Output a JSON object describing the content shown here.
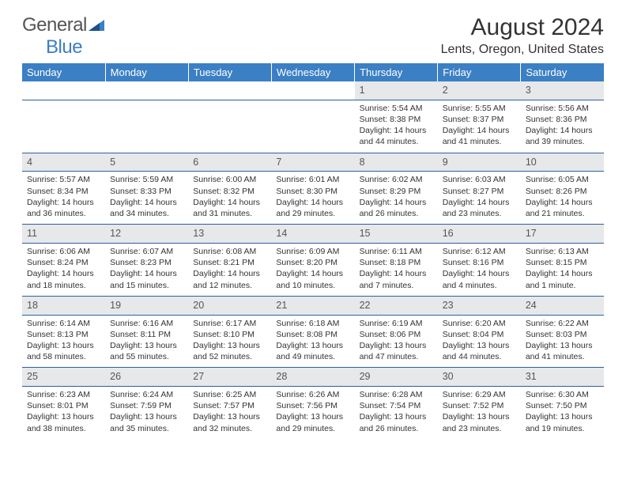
{
  "logo": {
    "word1": "General",
    "word2": "Blue"
  },
  "title": "August 2024",
  "location": "Lents, Oregon, United States",
  "day_headers": [
    "Sunday",
    "Monday",
    "Tuesday",
    "Wednesday",
    "Thursday",
    "Friday",
    "Saturday"
  ],
  "colors": {
    "header_bg": "#3b7fc4",
    "header_text": "#ffffff",
    "row_border": "#2f5f9e",
    "daynum_bg": "#e7e8ea",
    "body_bg": "#ffffff",
    "text": "#333333",
    "logo_blue": "#3b7fc4",
    "logo_gray": "#555555"
  },
  "weeks": [
    {
      "numbers": [
        "",
        "",
        "",
        "",
        "1",
        "2",
        "3"
      ],
      "cells": [
        {},
        {},
        {},
        {},
        {
          "sunrise": "Sunrise: 5:54 AM",
          "sunset": "Sunset: 8:38 PM",
          "daylight1": "Daylight: 14 hours",
          "daylight2": "and 44 minutes."
        },
        {
          "sunrise": "Sunrise: 5:55 AM",
          "sunset": "Sunset: 8:37 PM",
          "daylight1": "Daylight: 14 hours",
          "daylight2": "and 41 minutes."
        },
        {
          "sunrise": "Sunrise: 5:56 AM",
          "sunset": "Sunset: 8:36 PM",
          "daylight1": "Daylight: 14 hours",
          "daylight2": "and 39 minutes."
        }
      ]
    },
    {
      "numbers": [
        "4",
        "5",
        "6",
        "7",
        "8",
        "9",
        "10"
      ],
      "cells": [
        {
          "sunrise": "Sunrise: 5:57 AM",
          "sunset": "Sunset: 8:34 PM",
          "daylight1": "Daylight: 14 hours",
          "daylight2": "and 36 minutes."
        },
        {
          "sunrise": "Sunrise: 5:59 AM",
          "sunset": "Sunset: 8:33 PM",
          "daylight1": "Daylight: 14 hours",
          "daylight2": "and 34 minutes."
        },
        {
          "sunrise": "Sunrise: 6:00 AM",
          "sunset": "Sunset: 8:32 PM",
          "daylight1": "Daylight: 14 hours",
          "daylight2": "and 31 minutes."
        },
        {
          "sunrise": "Sunrise: 6:01 AM",
          "sunset": "Sunset: 8:30 PM",
          "daylight1": "Daylight: 14 hours",
          "daylight2": "and 29 minutes."
        },
        {
          "sunrise": "Sunrise: 6:02 AM",
          "sunset": "Sunset: 8:29 PM",
          "daylight1": "Daylight: 14 hours",
          "daylight2": "and 26 minutes."
        },
        {
          "sunrise": "Sunrise: 6:03 AM",
          "sunset": "Sunset: 8:27 PM",
          "daylight1": "Daylight: 14 hours",
          "daylight2": "and 23 minutes."
        },
        {
          "sunrise": "Sunrise: 6:05 AM",
          "sunset": "Sunset: 8:26 PM",
          "daylight1": "Daylight: 14 hours",
          "daylight2": "and 21 minutes."
        }
      ]
    },
    {
      "numbers": [
        "11",
        "12",
        "13",
        "14",
        "15",
        "16",
        "17"
      ],
      "cells": [
        {
          "sunrise": "Sunrise: 6:06 AM",
          "sunset": "Sunset: 8:24 PM",
          "daylight1": "Daylight: 14 hours",
          "daylight2": "and 18 minutes."
        },
        {
          "sunrise": "Sunrise: 6:07 AM",
          "sunset": "Sunset: 8:23 PM",
          "daylight1": "Daylight: 14 hours",
          "daylight2": "and 15 minutes."
        },
        {
          "sunrise": "Sunrise: 6:08 AM",
          "sunset": "Sunset: 8:21 PM",
          "daylight1": "Daylight: 14 hours",
          "daylight2": "and 12 minutes."
        },
        {
          "sunrise": "Sunrise: 6:09 AM",
          "sunset": "Sunset: 8:20 PM",
          "daylight1": "Daylight: 14 hours",
          "daylight2": "and 10 minutes."
        },
        {
          "sunrise": "Sunrise: 6:11 AM",
          "sunset": "Sunset: 8:18 PM",
          "daylight1": "Daylight: 14 hours",
          "daylight2": "and 7 minutes."
        },
        {
          "sunrise": "Sunrise: 6:12 AM",
          "sunset": "Sunset: 8:16 PM",
          "daylight1": "Daylight: 14 hours",
          "daylight2": "and 4 minutes."
        },
        {
          "sunrise": "Sunrise: 6:13 AM",
          "sunset": "Sunset: 8:15 PM",
          "daylight1": "Daylight: 14 hours",
          "daylight2": "and 1 minute."
        }
      ]
    },
    {
      "numbers": [
        "18",
        "19",
        "20",
        "21",
        "22",
        "23",
        "24"
      ],
      "cells": [
        {
          "sunrise": "Sunrise: 6:14 AM",
          "sunset": "Sunset: 8:13 PM",
          "daylight1": "Daylight: 13 hours",
          "daylight2": "and 58 minutes."
        },
        {
          "sunrise": "Sunrise: 6:16 AM",
          "sunset": "Sunset: 8:11 PM",
          "daylight1": "Daylight: 13 hours",
          "daylight2": "and 55 minutes."
        },
        {
          "sunrise": "Sunrise: 6:17 AM",
          "sunset": "Sunset: 8:10 PM",
          "daylight1": "Daylight: 13 hours",
          "daylight2": "and 52 minutes."
        },
        {
          "sunrise": "Sunrise: 6:18 AM",
          "sunset": "Sunset: 8:08 PM",
          "daylight1": "Daylight: 13 hours",
          "daylight2": "and 49 minutes."
        },
        {
          "sunrise": "Sunrise: 6:19 AM",
          "sunset": "Sunset: 8:06 PM",
          "daylight1": "Daylight: 13 hours",
          "daylight2": "and 47 minutes."
        },
        {
          "sunrise": "Sunrise: 6:20 AM",
          "sunset": "Sunset: 8:04 PM",
          "daylight1": "Daylight: 13 hours",
          "daylight2": "and 44 minutes."
        },
        {
          "sunrise": "Sunrise: 6:22 AM",
          "sunset": "Sunset: 8:03 PM",
          "daylight1": "Daylight: 13 hours",
          "daylight2": "and 41 minutes."
        }
      ]
    },
    {
      "numbers": [
        "25",
        "26",
        "27",
        "28",
        "29",
        "30",
        "31"
      ],
      "cells": [
        {
          "sunrise": "Sunrise: 6:23 AM",
          "sunset": "Sunset: 8:01 PM",
          "daylight1": "Daylight: 13 hours",
          "daylight2": "and 38 minutes."
        },
        {
          "sunrise": "Sunrise: 6:24 AM",
          "sunset": "Sunset: 7:59 PM",
          "daylight1": "Daylight: 13 hours",
          "daylight2": "and 35 minutes."
        },
        {
          "sunrise": "Sunrise: 6:25 AM",
          "sunset": "Sunset: 7:57 PM",
          "daylight1": "Daylight: 13 hours",
          "daylight2": "and 32 minutes."
        },
        {
          "sunrise": "Sunrise: 6:26 AM",
          "sunset": "Sunset: 7:56 PM",
          "daylight1": "Daylight: 13 hours",
          "daylight2": "and 29 minutes."
        },
        {
          "sunrise": "Sunrise: 6:28 AM",
          "sunset": "Sunset: 7:54 PM",
          "daylight1": "Daylight: 13 hours",
          "daylight2": "and 26 minutes."
        },
        {
          "sunrise": "Sunrise: 6:29 AM",
          "sunset": "Sunset: 7:52 PM",
          "daylight1": "Daylight: 13 hours",
          "daylight2": "and 23 minutes."
        },
        {
          "sunrise": "Sunrise: 6:30 AM",
          "sunset": "Sunset: 7:50 PM",
          "daylight1": "Daylight: 13 hours",
          "daylight2": "and 19 minutes."
        }
      ]
    }
  ]
}
